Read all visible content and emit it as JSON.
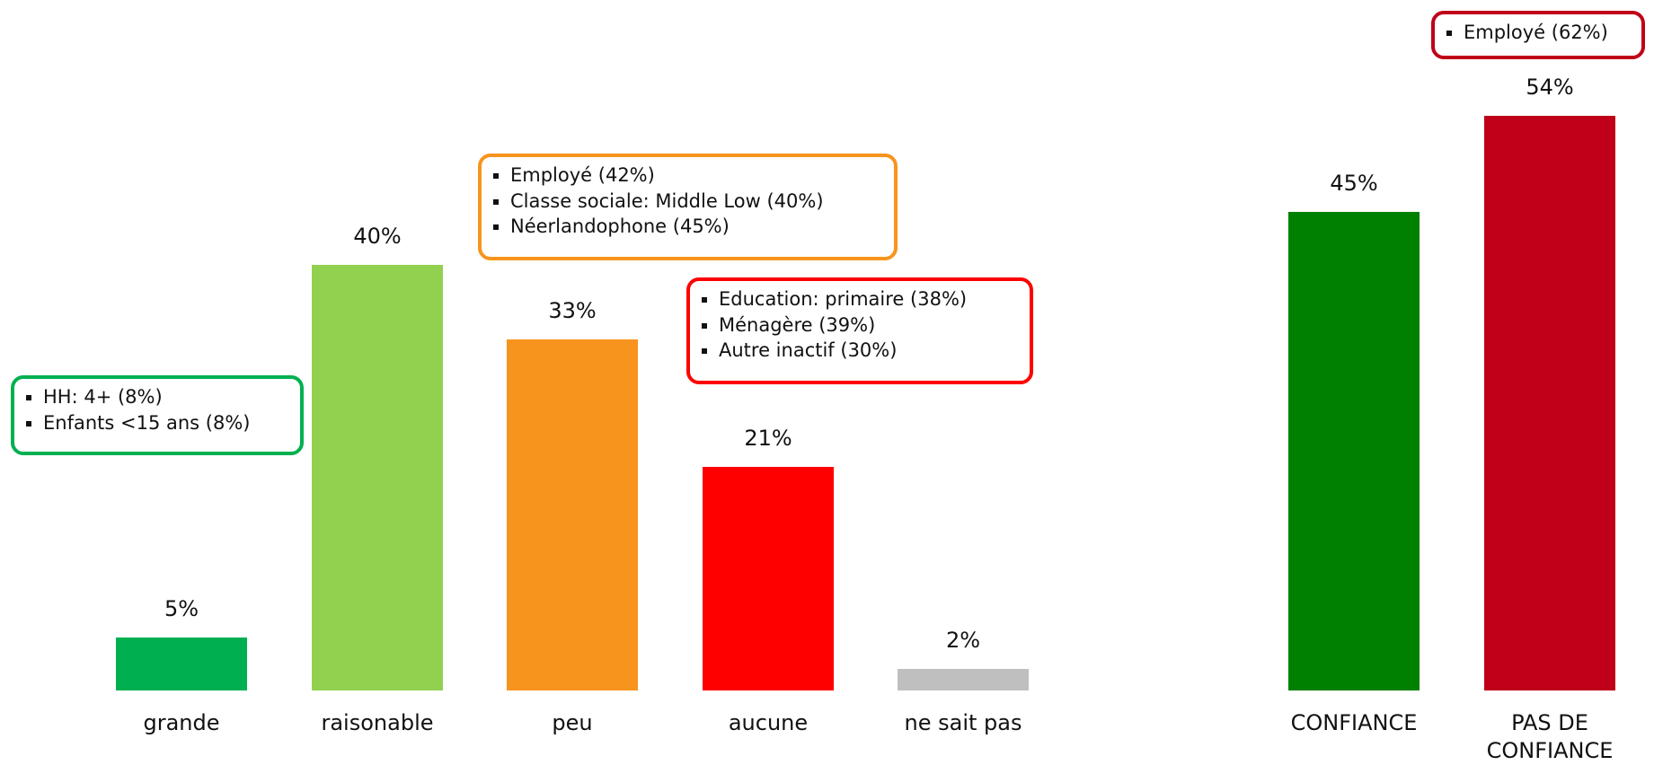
{
  "chart_data": [
    {
      "type": "bar",
      "categories": [
        "grande",
        "raisonable",
        "peu",
        "aucune",
        "ne sait pas"
      ],
      "values": [
        5,
        40,
        33,
        21,
        2
      ],
      "value_labels": [
        "5%",
        "40%",
        "33%",
        "21%",
        "2%"
      ],
      "colors": [
        "#00b050",
        "#92d050",
        "#f7941d",
        "#ff0000",
        "#bfbfbf"
      ],
      "annotations": [
        {
          "items": [
            "HH: 4+ (8%)",
            "Enfants <15 ans (8%)"
          ],
          "color": "#00b050"
        },
        {
          "items": [
            "Employé (42%)",
            "Classe sociale: Middle Low (40%)",
            "Néerlandophone (45%)"
          ],
          "color": "#f7941d"
        },
        {
          "items": [
            "Education: primaire (38%)",
            "Ménagère (39%)",
            "Autre inactif (30%)"
          ],
          "color": "#ff0000"
        }
      ]
    },
    {
      "type": "bar",
      "categories": [
        "CONFIANCE",
        "PAS DE CONFIANCE"
      ],
      "values": [
        45,
        54
      ],
      "value_labels": [
        "45%",
        "54%"
      ],
      "colors": [
        "#008000",
        "#c00018"
      ],
      "annotations": [
        {
          "items": [
            "Employé (62%)"
          ],
          "color": "#c00018"
        }
      ]
    }
  ]
}
